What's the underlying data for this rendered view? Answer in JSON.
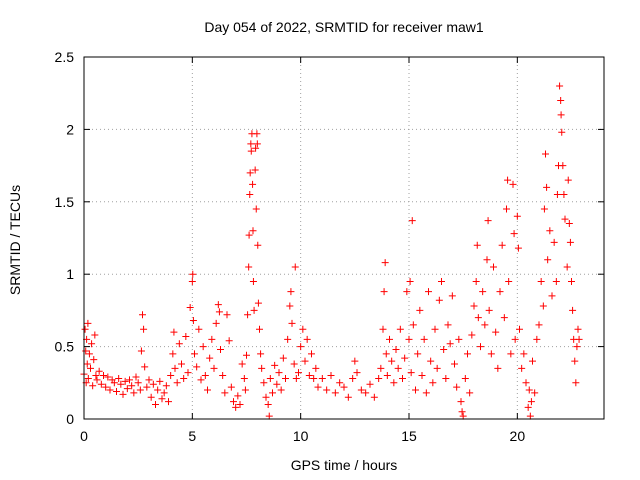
{
  "chart_data": {
    "type": "scatter",
    "title": "Day 054 of 2022, SRMTID for receiver maw1",
    "xlabel": "GPS time / hours",
    "ylabel": "SRMTID / TECUs",
    "xlim": [
      0,
      24
    ],
    "ylim": [
      0,
      2.5
    ],
    "x_ticks": [
      0,
      5,
      10,
      15,
      20
    ],
    "x_tick_labels": [
      "0",
      "5",
      "10",
      "15",
      "20"
    ],
    "y_ticks": [
      0,
      0.5,
      1,
      1.5,
      2,
      2.5
    ],
    "y_tick_labels": [
      "0",
      "0.5",
      "1",
      "1.5",
      "2",
      "2.5"
    ],
    "grid": true,
    "marker": "+",
    "color": "#ff0000",
    "series": [
      {
        "name": "maw1",
        "points": [
          [
            0.0,
            0.31
          ],
          [
            0.05,
            0.62
          ],
          [
            0.08,
            0.47
          ],
          [
            0.1,
            0.25
          ],
          [
            0.12,
            0.55
          ],
          [
            0.15,
            0.38
          ],
          [
            0.18,
            0.66
          ],
          [
            0.2,
            0.28
          ],
          [
            0.25,
            0.45
          ],
          [
            0.3,
            0.35
          ],
          [
            0.35,
            0.52
          ],
          [
            0.4,
            0.23
          ],
          [
            0.45,
            0.41
          ],
          [
            0.5,
            0.58
          ],
          [
            0.55,
            0.3
          ],
          [
            0.6,
            0.27
          ],
          [
            0.7,
            0.33
          ],
          [
            0.8,
            0.24
          ],
          [
            0.9,
            0.3
          ],
          [
            1.0,
            0.22
          ],
          [
            1.1,
            0.29
          ],
          [
            1.2,
            0.2
          ],
          [
            1.3,
            0.27
          ],
          [
            1.4,
            0.25
          ],
          [
            1.5,
            0.19
          ],
          [
            1.6,
            0.28
          ],
          [
            1.7,
            0.24
          ],
          [
            1.8,
            0.17
          ],
          [
            1.9,
            0.26
          ],
          [
            2.0,
            0.21
          ],
          [
            2.1,
            0.27
          ],
          [
            2.2,
            0.23
          ],
          [
            2.3,
            0.18
          ],
          [
            2.4,
            0.29
          ],
          [
            2.5,
            0.25
          ],
          [
            2.6,
            0.2
          ],
          [
            2.65,
            0.47
          ],
          [
            2.7,
            0.72
          ],
          [
            2.75,
            0.62
          ],
          [
            2.8,
            0.36
          ],
          [
            2.9,
            0.22
          ],
          [
            3.0,
            0.27
          ],
          [
            3.1,
            0.15
          ],
          [
            3.2,
            0.24
          ],
          [
            3.3,
            0.1
          ],
          [
            3.4,
            0.2
          ],
          [
            3.5,
            0.26
          ],
          [
            3.6,
            0.14
          ],
          [
            3.7,
            0.18
          ],
          [
            3.8,
            0.23
          ],
          [
            3.9,
            0.12
          ],
          [
            4.0,
            0.3
          ],
          [
            4.1,
            0.45
          ],
          [
            4.15,
            0.6
          ],
          [
            4.2,
            0.35
          ],
          [
            4.3,
            0.25
          ],
          [
            4.4,
            0.52
          ],
          [
            4.5,
            0.38
          ],
          [
            4.6,
            0.28
          ],
          [
            4.7,
            0.57
          ],
          [
            4.8,
            0.32
          ],
          [
            4.9,
            0.77
          ],
          [
            5.0,
            0.95
          ],
          [
            5.02,
            1.0
          ],
          [
            5.05,
            0.68
          ],
          [
            5.1,
            0.45
          ],
          [
            5.2,
            0.36
          ],
          [
            5.3,
            0.62
          ],
          [
            5.4,
            0.27
          ],
          [
            5.5,
            0.5
          ],
          [
            5.6,
            0.3
          ],
          [
            5.7,
            0.2
          ],
          [
            5.8,
            0.42
          ],
          [
            5.9,
            0.55
          ],
          [
            6.0,
            0.35
          ],
          [
            6.1,
            0.66
          ],
          [
            6.2,
            0.79
          ],
          [
            6.25,
            0.74
          ],
          [
            6.3,
            0.48
          ],
          [
            6.4,
            0.3
          ],
          [
            6.5,
            0.18
          ],
          [
            6.6,
            0.72
          ],
          [
            6.7,
            0.54
          ],
          [
            6.8,
            0.22
          ],
          [
            6.9,
            0.12
          ],
          [
            7.0,
            0.08
          ],
          [
            7.1,
            0.16
          ],
          [
            7.2,
            0.1
          ],
          [
            7.3,
            0.38
          ],
          [
            7.4,
            0.28
          ],
          [
            7.45,
            0.2
          ],
          [
            7.5,
            0.44
          ],
          [
            7.55,
            0.72
          ],
          [
            7.6,
            1.05
          ],
          [
            7.62,
            1.27
          ],
          [
            7.65,
            1.55
          ],
          [
            7.67,
            1.7
          ],
          [
            7.7,
            1.9
          ],
          [
            7.72,
            1.85
          ],
          [
            7.75,
            1.97
          ],
          [
            7.78,
            1.62
          ],
          [
            7.8,
            1.3
          ],
          [
            7.82,
            0.95
          ],
          [
            7.85,
            0.75
          ],
          [
            7.9,
            1.72
          ],
          [
            7.92,
            1.87
          ],
          [
            7.95,
            1.45
          ],
          [
            7.98,
            1.97
          ],
          [
            8.0,
            1.9
          ],
          [
            8.02,
            1.2
          ],
          [
            8.05,
            0.8
          ],
          [
            8.1,
            0.62
          ],
          [
            8.15,
            0.45
          ],
          [
            8.2,
            0.35
          ],
          [
            8.3,
            0.25
          ],
          [
            8.4,
            0.15
          ],
          [
            8.5,
            0.1
          ],
          [
            8.55,
            0.02
          ],
          [
            8.6,
            0.28
          ],
          [
            8.7,
            0.18
          ],
          [
            8.8,
            0.37
          ],
          [
            8.9,
            0.24
          ],
          [
            9.0,
            0.32
          ],
          [
            9.1,
            0.2
          ],
          [
            9.2,
            0.42
          ],
          [
            9.3,
            0.28
          ],
          [
            9.4,
            0.55
          ],
          [
            9.5,
            0.78
          ],
          [
            9.55,
            0.88
          ],
          [
            9.6,
            0.66
          ],
          [
            9.7,
            0.38
          ],
          [
            9.75,
            1.05
          ],
          [
            9.8,
            0.28
          ],
          [
            9.9,
            0.32
          ],
          [
            10.0,
            0.5
          ],
          [
            10.1,
            0.62
          ],
          [
            10.2,
            0.4
          ],
          [
            10.3,
            0.55
          ],
          [
            10.4,
            0.3
          ],
          [
            10.5,
            0.45
          ],
          [
            10.6,
            0.28
          ],
          [
            10.7,
            0.35
          ],
          [
            10.8,
            0.22
          ],
          [
            11.0,
            0.28
          ],
          [
            11.2,
            0.2
          ],
          [
            11.4,
            0.3
          ],
          [
            11.6,
            0.18
          ],
          [
            11.8,
            0.25
          ],
          [
            12.0,
            0.22
          ],
          [
            12.2,
            0.15
          ],
          [
            12.4,
            0.28
          ],
          [
            12.5,
            0.4
          ],
          [
            12.6,
            0.32
          ],
          [
            12.8,
            0.2
          ],
          [
            13.0,
            0.18
          ],
          [
            13.2,
            0.24
          ],
          [
            13.4,
            0.15
          ],
          [
            13.6,
            0.28
          ],
          [
            13.7,
            0.35
          ],
          [
            13.8,
            0.62
          ],
          [
            13.85,
            0.88
          ],
          [
            13.9,
            1.08
          ],
          [
            13.95,
            0.45
          ],
          [
            14.0,
            0.3
          ],
          [
            14.1,
            0.55
          ],
          [
            14.2,
            0.4
          ],
          [
            14.3,
            0.25
          ],
          [
            14.4,
            0.48
          ],
          [
            14.5,
            0.35
          ],
          [
            14.6,
            0.62
          ],
          [
            14.7,
            0.28
          ],
          [
            14.8,
            0.42
          ],
          [
            14.9,
            0.88
          ],
          [
            15.0,
            0.55
          ],
          [
            15.05,
            0.95
          ],
          [
            15.1,
            0.32
          ],
          [
            15.15,
            1.37
          ],
          [
            15.2,
            0.65
          ],
          [
            15.3,
            0.2
          ],
          [
            15.4,
            0.45
          ],
          [
            15.5,
            0.75
          ],
          [
            15.6,
            0.3
          ],
          [
            15.7,
            0.55
          ],
          [
            15.8,
            0.18
          ],
          [
            15.9,
            0.88
          ],
          [
            16.0,
            0.4
          ],
          [
            16.1,
            0.25
          ],
          [
            16.2,
            0.62
          ],
          [
            16.3,
            0.35
          ],
          [
            16.4,
            0.82
          ],
          [
            16.5,
            0.95
          ],
          [
            16.6,
            0.48
          ],
          [
            16.7,
            0.28
          ],
          [
            16.8,
            0.65
          ],
          [
            16.9,
            0.52
          ],
          [
            17.0,
            0.85
          ],
          [
            17.1,
            0.38
          ],
          [
            17.2,
            0.22
          ],
          [
            17.3,
            0.55
          ],
          [
            17.4,
            0.12
          ],
          [
            17.45,
            0.05
          ],
          [
            17.5,
            0.02
          ],
          [
            17.6,
            0.28
          ],
          [
            17.7,
            0.45
          ],
          [
            17.8,
            0.18
          ],
          [
            17.9,
            0.58
          ],
          [
            18.0,
            0.78
          ],
          [
            18.1,
            0.95
          ],
          [
            18.15,
            1.2
          ],
          [
            18.2,
            0.7
          ],
          [
            18.3,
            0.5
          ],
          [
            18.4,
            0.88
          ],
          [
            18.5,
            0.65
          ],
          [
            18.6,
            1.1
          ],
          [
            18.65,
            1.37
          ],
          [
            18.7,
            0.75
          ],
          [
            18.8,
            0.45
          ],
          [
            18.9,
            1.05
          ],
          [
            19.0,
            0.6
          ],
          [
            19.1,
            0.35
          ],
          [
            19.2,
            0.88
          ],
          [
            19.3,
            1.2
          ],
          [
            19.4,
            0.7
          ],
          [
            19.5,
            1.45
          ],
          [
            19.55,
            1.65
          ],
          [
            19.6,
            0.95
          ],
          [
            19.7,
            0.45
          ],
          [
            19.8,
            1.62
          ],
          [
            19.85,
            1.28
          ],
          [
            19.9,
            0.55
          ],
          [
            20.0,
            1.4
          ],
          [
            20.05,
            1.18
          ],
          [
            20.1,
            0.62
          ],
          [
            20.2,
            0.35
          ],
          [
            20.3,
            0.45
          ],
          [
            20.4,
            0.25
          ],
          [
            20.5,
            0.08
          ],
          [
            20.55,
            0.2
          ],
          [
            20.6,
            0.02
          ],
          [
            20.65,
            0.12
          ],
          [
            20.7,
            0.4
          ],
          [
            20.8,
            0.18
          ],
          [
            20.9,
            0.55
          ],
          [
            21.0,
            0.65
          ],
          [
            21.1,
            0.95
          ],
          [
            21.2,
            0.78
          ],
          [
            21.25,
            1.45
          ],
          [
            21.3,
            1.83
          ],
          [
            21.35,
            1.6
          ],
          [
            21.4,
            1.1
          ],
          [
            21.5,
            1.3
          ],
          [
            21.6,
            0.85
          ],
          [
            21.7,
            1.22
          ],
          [
            21.8,
            0.95
          ],
          [
            21.85,
            1.55
          ],
          [
            21.9,
            1.75
          ],
          [
            21.95,
            2.3
          ],
          [
            22.0,
            2.2
          ],
          [
            22.02,
            2.1
          ],
          [
            22.05,
            1.98
          ],
          [
            22.1,
            1.75
          ],
          [
            22.15,
            1.55
          ],
          [
            22.2,
            1.38
          ],
          [
            22.3,
            1.05
          ],
          [
            22.35,
            1.65
          ],
          [
            22.4,
            1.35
          ],
          [
            22.45,
            1.22
          ],
          [
            22.5,
            0.95
          ],
          [
            22.55,
            0.75
          ],
          [
            22.6,
            0.55
          ],
          [
            22.65,
            0.4
          ],
          [
            22.7,
            0.25
          ],
          [
            22.75,
            0.5
          ],
          [
            22.8,
            0.62
          ],
          [
            22.85,
            0.55
          ]
        ]
      }
    ]
  }
}
